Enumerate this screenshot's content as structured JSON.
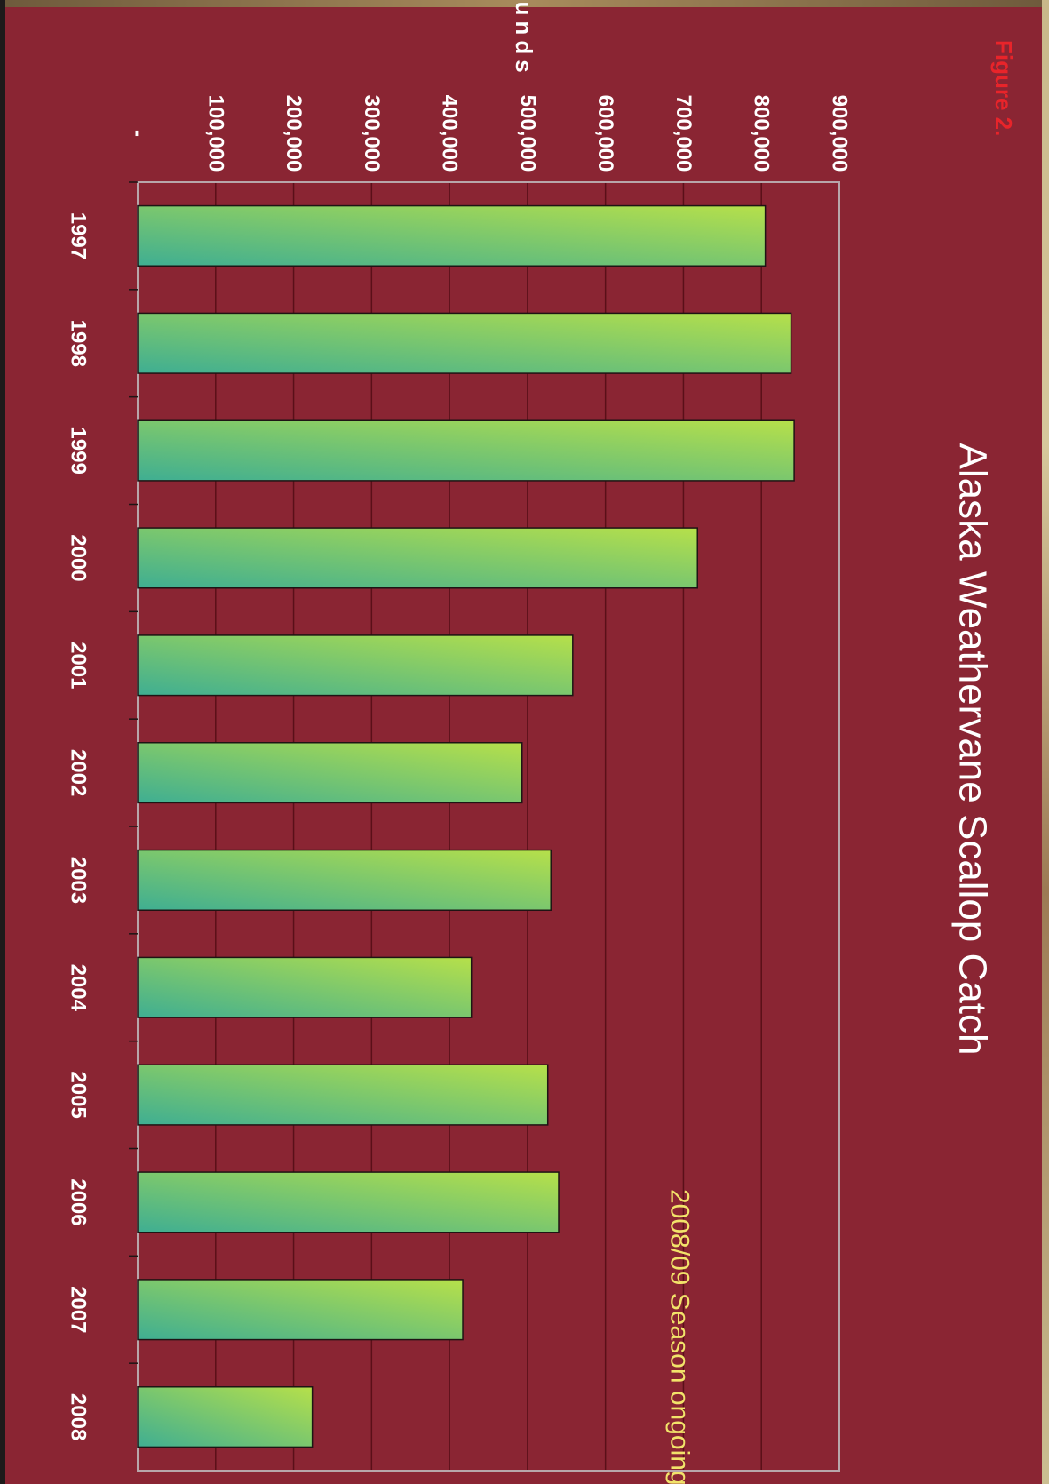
{
  "figure_label": "Figure 2.",
  "chart_data": {
    "type": "bar",
    "orientation": "rotated page; bars extend upward from value axis at bottom",
    "title": "Alaska Weathervane Scallop Catch",
    "xlabel": "",
    "ylabel": "Pounds",
    "categories": [
      "1997",
      "1998",
      "1999",
      "2000",
      "2001",
      "2002",
      "2003",
      "2004",
      "2005",
      "2006",
      "2007",
      "2008"
    ],
    "values": [
      805000,
      838000,
      842000,
      718000,
      558000,
      493000,
      530000,
      428000,
      526000,
      540000,
      417000,
      224000
    ],
    "ylim": [
      0,
      900000
    ],
    "value_ticks": [
      {
        "value": 0,
        "label": "-"
      },
      {
        "value": 100000,
        "label": "100,000"
      },
      {
        "value": 200000,
        "label": "200,000"
      },
      {
        "value": 300000,
        "label": "300,000"
      },
      {
        "value": 400000,
        "label": "400,000"
      },
      {
        "value": 500000,
        "label": "500,000"
      },
      {
        "value": 600000,
        "label": "600,000"
      },
      {
        "value": 700000,
        "label": "700,000"
      },
      {
        "value": 800000,
        "label": "800,000"
      },
      {
        "value": 900000,
        "label": "900,000"
      }
    ],
    "annotations": [
      "2008/09 Season ongoing"
    ],
    "grid": true,
    "colors": {
      "background": "#8a2533",
      "bar_light": "#b6e04a",
      "bar_dark": "#3fae92",
      "gridline": "#5a0f18",
      "title": "#ffffff",
      "figure_label": "#e8242a",
      "annotation": "#f2e36a"
    }
  }
}
